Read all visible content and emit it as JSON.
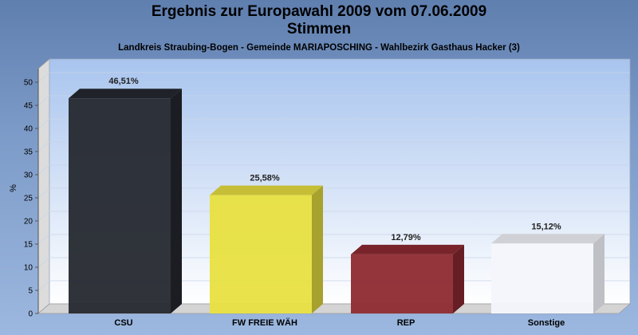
{
  "chart_data": {
    "type": "bar",
    "title": "Ergebnis zur Europawahl 2009 vom 07.06.2009",
    "subtitle": "Stimmen",
    "caption": "Landkreis Straubing-Bogen - Gemeinde MARIAPOSCHING - Wahlbezirk Gasthaus Hacker (3)",
    "ylabel": "%",
    "ylim": [
      0,
      50
    ],
    "yticks": [
      "0",
      "5",
      "10",
      "15",
      "20",
      "25",
      "30",
      "35",
      "40",
      "45",
      "50"
    ],
    "categories": [
      "CSU",
      "FW FREIE WÄH",
      "REP",
      "Sonstige"
    ],
    "values": [
      46.51,
      25.58,
      12.79,
      15.12
    ],
    "value_labels": [
      "46,51%",
      "25,58%",
      "12,79%",
      "15,12%"
    ],
    "colors": [
      "#25282f",
      "#e8e040",
      "#8e2a32",
      "#f4f6fc"
    ],
    "grid": true,
    "three_d": true
  }
}
